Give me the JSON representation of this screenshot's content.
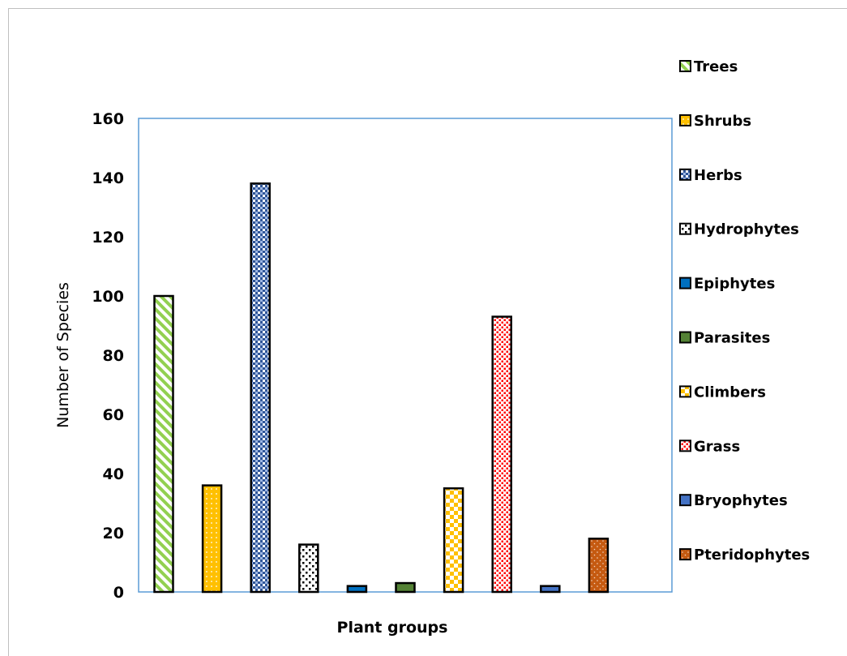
{
  "chart_data": {
    "type": "bar",
    "title": "",
    "xlabel": "Plant groups",
    "ylabel": "Number of Species",
    "ylim": [
      0,
      160
    ],
    "yticks": [
      0,
      20,
      40,
      60,
      80,
      100,
      120,
      140,
      160
    ],
    "grid": false,
    "legend_position": "right",
    "series": [
      {
        "name": "Trees",
        "value": 100,
        "color": "#92d050",
        "pattern": "diagonal-stripes"
      },
      {
        "name": "Shrubs",
        "value": 36,
        "color": "#ffc000",
        "pattern": "small-dots"
      },
      {
        "name": "Herbs",
        "value": 138,
        "color": "#2f5597",
        "pattern": "checker-grid"
      },
      {
        "name": "Hydrophytes",
        "value": 16,
        "color": "#000000",
        "pattern": "sparse-dots"
      },
      {
        "name": "Epiphytes",
        "value": 2,
        "color": "#0070c0",
        "pattern": "solid"
      },
      {
        "name": "Parasites",
        "value": 3,
        "color": "#548235",
        "pattern": "solid"
      },
      {
        "name": "Climbers",
        "value": 35,
        "color": "#ffc000",
        "pattern": "checker-large"
      },
      {
        "name": "Grass",
        "value": 93,
        "color": "#ff0000",
        "pattern": "dense-dots"
      },
      {
        "name": "Bryophytes",
        "value": 2,
        "color": "#4472c4",
        "pattern": "solid"
      },
      {
        "name": "Pteridophytes",
        "value": 18,
        "color": "#c55a11",
        "pattern": "sparse-dots-light"
      }
    ]
  }
}
